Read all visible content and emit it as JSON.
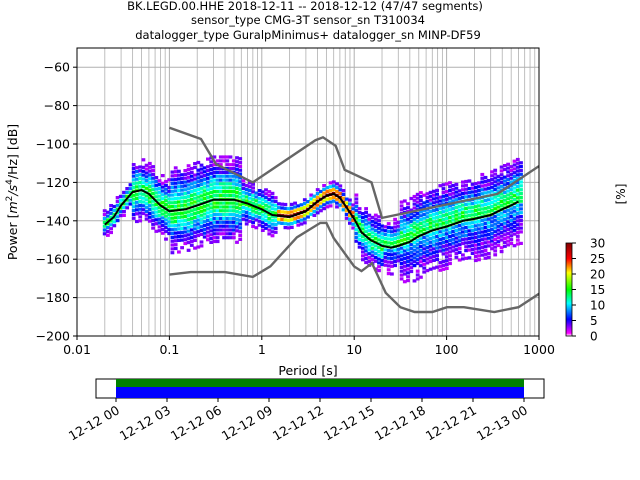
{
  "chart_data": {
    "type": "heatmap",
    "title": {
      "line1": "BK.LEGD.00.HHE   2018-12-11 -- 2018-12-12  (47/47 segments)",
      "line2": "sensor_type CMG-3T sensor_sn T310034",
      "line3": "datalogger_type GuralpMinimus+ datalogger_sn MINP-DF59"
    },
    "xlabel": "Period [s]",
    "ylabel_parts": {
      "a": "Power [",
      "m": "m",
      "e1": "2",
      "s1": "/s",
      "e2": "4",
      "s2": "/Hz] [dB]"
    },
    "xscale": "log",
    "xlim": [
      0.01,
      1000
    ],
    "ylim": [
      -200,
      -50
    ],
    "x_ticks": [
      "0.01",
      "0.1",
      "1",
      "10",
      "100",
      "1000"
    ],
    "y_ticks": [
      "−60",
      "−80",
      "−100",
      "−120",
      "−140",
      "−160",
      "−180",
      "−200"
    ],
    "y_tick_values": [
      -60,
      -80,
      -100,
      -120,
      -140,
      -160,
      -180,
      -200
    ],
    "grid": true,
    "colorbar": {
      "label": "[%]",
      "range": [
        0,
        30
      ],
      "ticks": [
        "0",
        "5",
        "10",
        "15",
        "20",
        "25",
        "30"
      ],
      "tick_values": [
        0,
        5,
        10,
        15,
        20,
        25,
        30
      ]
    },
    "mean_curve": {
      "x": [
        0.02,
        0.025,
        0.03,
        0.04,
        0.05,
        0.06,
        0.08,
        0.1,
        0.15,
        0.2,
        0.3,
        0.5,
        0.7,
        1.0,
        1.3,
        2.0,
        3.0,
        4.0,
        5.0,
        6.0,
        7.0,
        8.0,
        10,
        12,
        15,
        20,
        25,
        30,
        40,
        50,
        70,
        100,
        150,
        200,
        300,
        400,
        500,
        600
      ],
      "y": [
        -142,
        -138,
        -132,
        -125,
        -124,
        -126,
        -132,
        -135,
        -134,
        -132,
        -129,
        -129,
        -131,
        -134,
        -137,
        -138,
        -135,
        -130,
        -127,
        -126,
        -128,
        -132,
        -139,
        -146,
        -150,
        -153,
        -154,
        -153,
        -151,
        -148,
        -145,
        -143,
        -140,
        -139,
        -137,
        -134,
        -132,
        -130
      ]
    },
    "noise_models": {
      "high": {
        "x": [
          0.1,
          0.22,
          0.32,
          0.8,
          3.8,
          4.6,
          6.3,
          7.9,
          15.4,
          20,
          354.8,
          1000
        ],
        "y": [
          -91.5,
          -97.4,
          -110.5,
          -120,
          -98,
          -96.5,
          -101,
          -113.5,
          -120,
          -138.5,
          -126,
          -111.5
        ]
      },
      "low": {
        "x": [
          0.1,
          0.17,
          0.4,
          0.8,
          1.24,
          2.4,
          4.3,
          5.0,
          6.0,
          10,
          12,
          15.6,
          21.9,
          31.6,
          45,
          70,
          101,
          154,
          328,
          600,
          1000
        ],
        "y": [
          -168,
          -166.7,
          -166.7,
          -169.2,
          -163.7,
          -148.6,
          -141.1,
          -141.1,
          -149,
          -163.8,
          -166.2,
          -162.1,
          -177.5,
          -185,
          -187.5,
          -187.5,
          -185,
          -185,
          -187.5,
          -185,
          -178
        ]
      }
    },
    "time_axis": {
      "ticks": [
        "12-12 00",
        "12-12 03",
        "12-12 06",
        "12-12 09",
        "12-12 12",
        "12-12 15",
        "12-12 18",
        "12-12 21",
        "12-13 00"
      ],
      "coverage_fraction": 1.0
    },
    "colors": {
      "mean": "#000000",
      "noise_model": "#666666",
      "grid": "#b0b0b0",
      "coverage_top": "#008000",
      "coverage_bottom": "#0000ff"
    }
  }
}
